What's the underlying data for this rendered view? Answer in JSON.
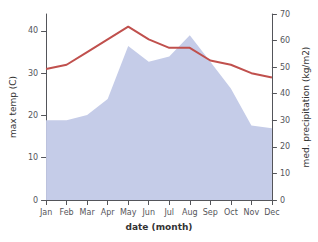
{
  "chart_data": {
    "type": "line",
    "xlabel": "date (month)",
    "ylabel": "max temp (C)",
    "y2label": "med. precipitation (kg/m2)",
    "categories": [
      "Jan",
      "Feb",
      "Mar",
      "Apr",
      "May",
      "Jun",
      "Jul",
      "Aug",
      "Sep",
      "Oct",
      "Nov",
      "Dec"
    ],
    "series": [
      {
        "type": "area",
        "axis": "y2",
        "color": "#c5cce8",
        "values": [
          30,
          30,
          32,
          38,
          58,
          52,
          54,
          62,
          52,
          42,
          28,
          27
        ]
      },
      {
        "type": "line",
        "color": "#c0504d",
        "values": [
          31,
          32,
          35,
          38,
          41,
          38,
          36,
          36,
          33,
          32,
          30,
          29
        ]
      }
    ],
    "ylim": [
      0,
      44
    ],
    "yticks": [
      0,
      10,
      20,
      30,
      40
    ],
    "y2lim": [
      0,
      70
    ],
    "y2ticks": [
      0,
      10,
      20,
      30,
      40,
      50,
      60,
      70
    ],
    "grid": false
  }
}
